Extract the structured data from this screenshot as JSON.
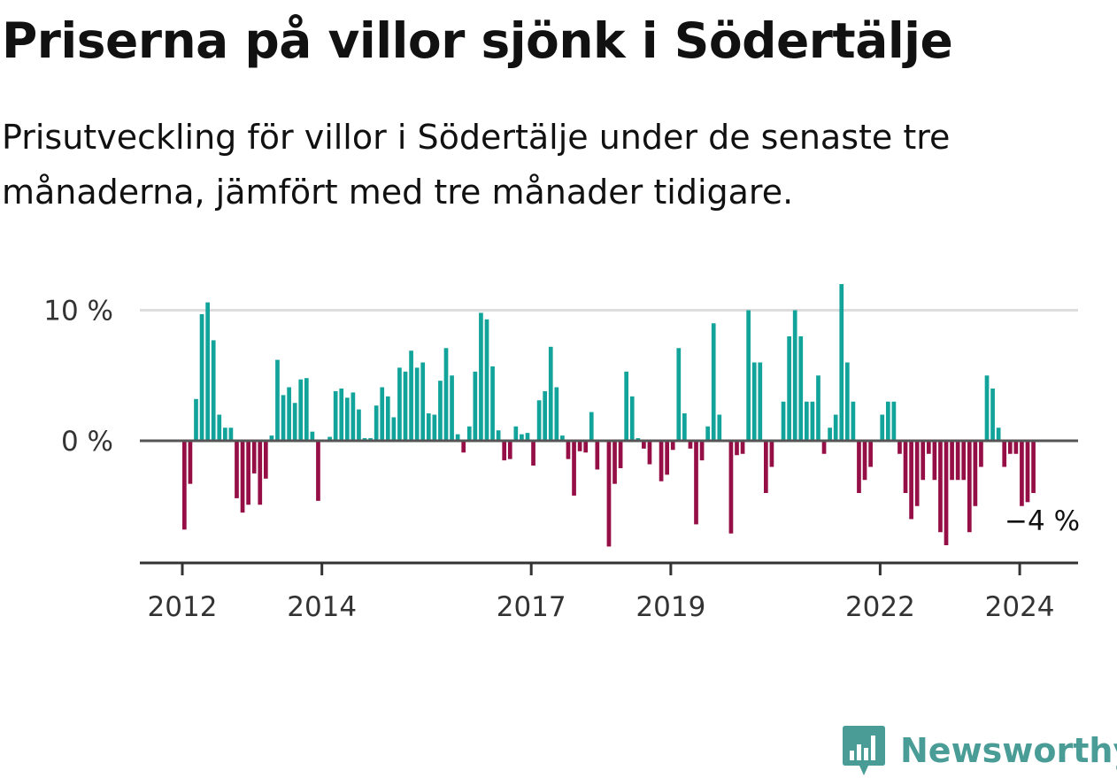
{
  "title": "Priserna på villor sjönk i Södertälje",
  "subtitle": "Prisutveckling för villor i Södertälje under de senaste tre månaderna, jämfört med tre månader tidigare.",
  "brand": {
    "name": "Newsworthy",
    "logo_icon": "bar-chart-logo-icon",
    "color": "#4a9c97"
  },
  "colors": {
    "positive": "#12a49b",
    "negative": "#950f46",
    "gridline": "#dddddd",
    "zero_line": "#555555",
    "axis": "#333333"
  },
  "chart_data": {
    "type": "bar",
    "title": "Priserna på villor sjönk i Södertälje",
    "subtitle": "Prisutveckling för villor i Södertälje under de senaste tre månaderna, jämfört med tre månader tidigare.",
    "xlabel": "",
    "ylabel": "",
    "ylim": [
      -9.2,
      12.3
    ],
    "grid": true,
    "legend": "none",
    "start": "2012-01",
    "frequency": "monthly",
    "x_ticks": [
      {
        "label": "2012",
        "value": 2012
      },
      {
        "label": "2014",
        "value": 2014
      },
      {
        "label": "2017",
        "value": 2017
      },
      {
        "label": "2019",
        "value": 2019
      },
      {
        "label": "2022",
        "value": 2022
      },
      {
        "label": "2024",
        "value": 2024
      }
    ],
    "y_ticks": [
      {
        "label": "10 %",
        "value": 10
      },
      {
        "label": "0 %",
        "value": 0
      }
    ],
    "annotation": {
      "label": "−4 %",
      "value": -4
    },
    "values": [
      -6.8,
      -3.3,
      3.2,
      9.7,
      10.6,
      7.7,
      2.0,
      1.0,
      1.0,
      -4.4,
      -5.5,
      -4.9,
      -2.5,
      -4.9,
      -2.9,
      0.4,
      6.2,
      3.5,
      4.1,
      2.9,
      4.7,
      4.8,
      0.7,
      -4.6,
      0.0,
      0.3,
      3.8,
      4.0,
      3.3,
      3.7,
      2.4,
      0.2,
      0.2,
      2.7,
      4.1,
      3.4,
      1.8,
      5.6,
      5.3,
      6.9,
      5.6,
      6.0,
      2.1,
      2.0,
      4.6,
      7.1,
      5.0,
      0.5,
      -0.9,
      1.1,
      5.3,
      9.8,
      9.3,
      5.7,
      0.8,
      -1.5,
      -1.4,
      1.1,
      0.5,
      0.6,
      -1.9,
      3.1,
      3.8,
      7.2,
      4.1,
      0.4,
      -1.4,
      -4.2,
      -0.8,
      -0.9,
      2.2,
      -2.2,
      0.1,
      -8.1,
      -3.3,
      -2.1,
      5.3,
      3.4,
      0.2,
      -0.6,
      -1.8,
      -0.1,
      -3.1,
      -2.6,
      -0.7,
      7.1,
      2.1,
      -0.6,
      -6.4,
      -1.5,
      1.1,
      9.0,
      2.0,
      0.1,
      -7.1,
      -1.1,
      -1.0,
      10.0,
      6.0,
      6.0,
      -4.0,
      -2.0,
      0.0,
      3.0,
      8.0,
      10.0,
      8.0,
      3.0,
      3.0,
      5.0,
      -1.0,
      1.0,
      2.0,
      12.0,
      6.0,
      3.0,
      -4.0,
      -3.0,
      -2.0,
      0.0,
      2.0,
      3.0,
      3.0,
      -1.0,
      -4.0,
      -6.0,
      -5.0,
      -3.0,
      -1.0,
      -3.0,
      -7.0,
      -8.0,
      -3.0,
      -3.0,
      -3.0,
      -7.0,
      -5.0,
      -2.0,
      5.0,
      4.0,
      1.0,
      -2.0,
      -1.0,
      -1.0,
      -5.0,
      -4.7,
      -4.0
    ]
  }
}
